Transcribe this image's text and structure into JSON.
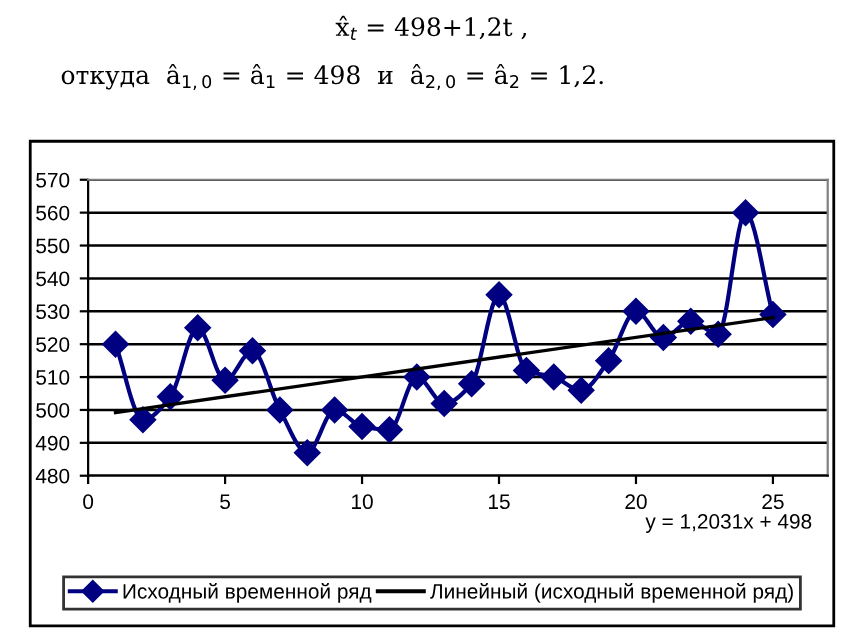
{
  "chart_data": {
    "type": "line",
    "annotations": [
      "x̂$_{t}$ = 498+1,2t ,",
      "откуда  â$_{1,0}$ = â$_{1}$ = 498  и  â$_{2,0}$ = â$_{2}$ = 1,2.",
      "y = 1,2031x + 498"
    ],
    "x": [
      1,
      2,
      3,
      4,
      5,
      6,
      7,
      8,
      9,
      10,
      11,
      12,
      13,
      14,
      15,
      16,
      17,
      18,
      19,
      20,
      21,
      22,
      23,
      24,
      25
    ],
    "series": [
      {
        "name": "Исходный временной ряд",
        "color": "#000080",
        "marker": "diamond",
        "values": [
          520,
          497,
          504,
          525,
          509,
          518,
          500,
          487,
          500,
          495,
          494,
          510,
          502,
          508,
          535,
          512,
          510,
          506,
          515,
          530,
          522,
          527,
          523,
          560,
          529
        ]
      },
      {
        "name": "Линейный (исходный временной ряд)",
        "color": "#000000",
        "marker": "none",
        "x": [
          1,
          25
        ],
        "values": [
          499.2,
          528.1
        ]
      }
    ],
    "xlim": [
      0,
      27
    ],
    "xticks": [
      0,
      5,
      10,
      15,
      20,
      25
    ],
    "ylim": [
      480,
      570
    ],
    "yticks": [
      480,
      490,
      500,
      510,
      520,
      530,
      540,
      550,
      560,
      570
    ],
    "grid": "y",
    "legend": "bottom"
  }
}
